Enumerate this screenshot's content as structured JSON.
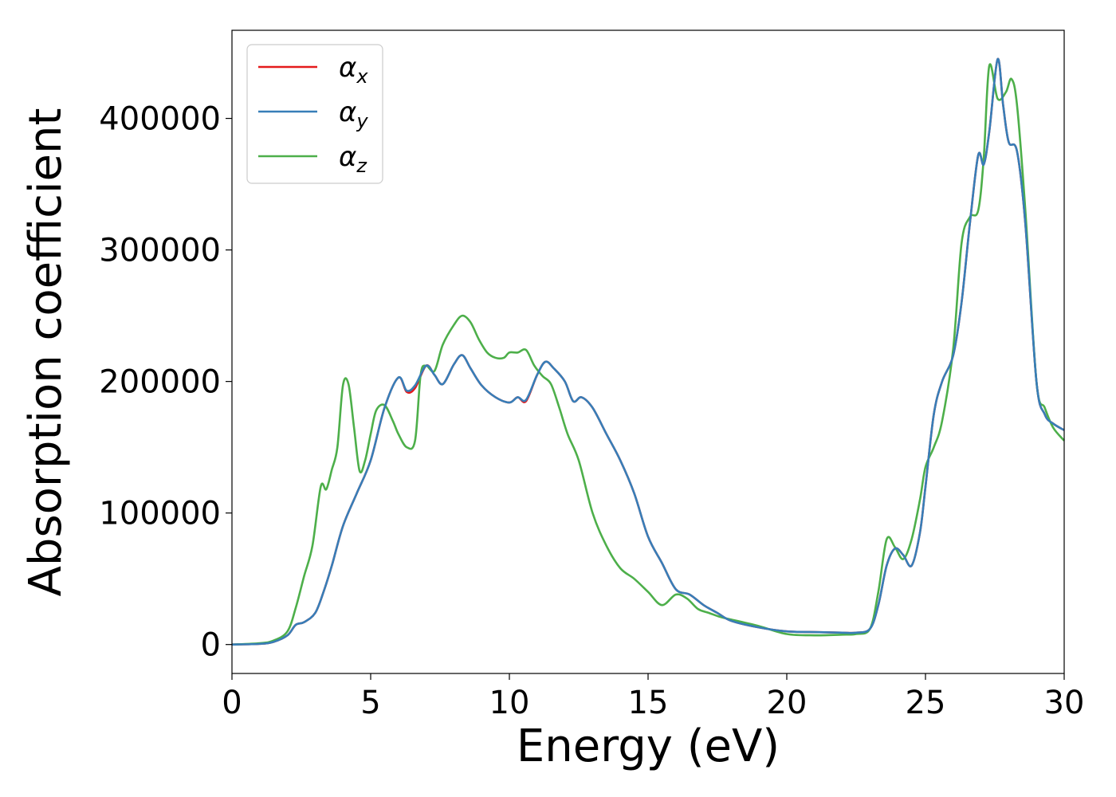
{
  "chart_data": {
    "type": "line",
    "title": "",
    "xlabel": "Energy (eV)",
    "ylabel": "Absorption coefficient",
    "xlim": [
      0,
      30
    ],
    "ylim": [
      -22000,
      467000
    ],
    "xticks": [
      0,
      5,
      10,
      15,
      20,
      25,
      30
    ],
    "xtick_labels": [
      "0",
      "5",
      "10",
      "15",
      "20",
      "25",
      "30"
    ],
    "yticks": [
      0,
      100000,
      200000,
      300000,
      400000
    ],
    "ytick_labels": [
      "0",
      "100000",
      "200000",
      "300000",
      "400000"
    ],
    "grid": false,
    "legend_position": "top-left",
    "colors": {
      "alpha_x": "#e41a1c",
      "alpha_y": "#377eb8",
      "alpha_z": "#4daf4a"
    },
    "series": [
      {
        "key": "alpha_x",
        "name": "α",
        "subscript": "x",
        "color": "#e41a1c",
        "x": [
          0,
          1,
          1.5,
          2,
          2.3,
          2.6,
          3,
          3.3,
          3.6,
          4,
          4.5,
          5,
          5.5,
          6,
          6.3,
          6.6,
          7,
          7.3,
          7.6,
          8,
          8.3,
          8.6,
          9,
          9.5,
          10,
          10.3,
          10.6,
          11,
          11.3,
          11.6,
          12,
          12.3,
          12.6,
          13,
          13.5,
          14,
          14.5,
          15,
          15.5,
          16,
          16.5,
          17,
          17.5,
          18,
          19,
          20,
          21,
          22,
          22.5,
          23,
          23.3,
          23.6,
          23.9,
          24.2,
          24.5,
          24.8,
          25,
          25.3,
          25.6,
          26,
          26.3,
          26.6,
          26.9,
          27.1,
          27.3,
          27.6,
          27.8,
          28,
          28.3,
          28.6,
          29,
          29.3,
          29.6,
          30
        ],
        "y": [
          0,
          500,
          2000,
          7000,
          15000,
          17000,
          24000,
          40000,
          60000,
          90000,
          115000,
          140000,
          180000,
          203000,
          192000,
          195000,
          212000,
          205000,
          198000,
          213000,
          220000,
          210000,
          197000,
          188000,
          184000,
          188000,
          185000,
          205000,
          215000,
          210000,
          200000,
          185000,
          188000,
          180000,
          160000,
          140000,
          115000,
          82000,
          62000,
          42000,
          38000,
          30000,
          24000,
          18000,
          13000,
          10000,
          9500,
          9000,
          9000,
          12000,
          30000,
          60000,
          73000,
          68000,
          60000,
          85000,
          120000,
          175000,
          200000,
          220000,
          260000,
          320000,
          372000,
          365000,
          390000,
          445000,
          410000,
          382000,
          375000,
          320000,
          200000,
          175000,
          168000,
          163000
        ]
      },
      {
        "key": "alpha_y",
        "name": "α",
        "subscript": "y",
        "color": "#377eb8",
        "x": [
          0,
          1,
          1.5,
          2,
          2.3,
          2.6,
          3,
          3.3,
          3.6,
          4,
          4.5,
          5,
          5.5,
          6,
          6.3,
          6.6,
          7,
          7.3,
          7.6,
          8,
          8.3,
          8.6,
          9,
          9.5,
          10,
          10.3,
          10.6,
          11,
          11.3,
          11.6,
          12,
          12.3,
          12.6,
          13,
          13.5,
          14,
          14.5,
          15,
          15.5,
          16,
          16.5,
          17,
          17.5,
          18,
          19,
          20,
          21,
          22,
          22.5,
          23,
          23.3,
          23.6,
          23.9,
          24.2,
          24.5,
          24.8,
          25,
          25.3,
          25.6,
          26,
          26.3,
          26.6,
          26.9,
          27.1,
          27.3,
          27.6,
          27.8,
          28,
          28.3,
          28.6,
          29,
          29.3,
          29.6,
          30
        ],
        "y": [
          0,
          500,
          2000,
          7000,
          15000,
          17000,
          24000,
          40000,
          60000,
          90000,
          115000,
          140000,
          180000,
          203000,
          193000,
          197000,
          212000,
          205000,
          198000,
          213000,
          220000,
          210000,
          197000,
          188000,
          184000,
          188000,
          186000,
          205000,
          215000,
          210000,
          200000,
          185000,
          188000,
          180000,
          160000,
          140000,
          115000,
          82000,
          62000,
          42000,
          38000,
          30000,
          24000,
          18000,
          13000,
          10000,
          9500,
          9000,
          9000,
          12000,
          30000,
          60000,
          73000,
          68000,
          60000,
          85000,
          120000,
          175000,
          200000,
          220000,
          260000,
          320000,
          372000,
          365000,
          390000,
          445000,
          410000,
          382000,
          375000,
          320000,
          200000,
          175000,
          168000,
          163000
        ]
      },
      {
        "key": "alpha_z",
        "name": "α",
        "subscript": "z",
        "color": "#4daf4a",
        "x": [
          0,
          1,
          1.5,
          2,
          2.3,
          2.6,
          2.9,
          3.2,
          3.4,
          3.6,
          3.8,
          4,
          4.2,
          4.4,
          4.6,
          4.8,
          5,
          5.2,
          5.5,
          5.8,
          6,
          6.3,
          6.6,
          6.8,
          7,
          7.3,
          7.6,
          8,
          8.3,
          8.6,
          8.9,
          9.2,
          9.5,
          9.8,
          10,
          10.3,
          10.6,
          10.9,
          11.2,
          11.5,
          11.8,
          12.1,
          12.5,
          13,
          13.5,
          14,
          14.5,
          15,
          15.5,
          16,
          16.4,
          16.8,
          17.2,
          17.6,
          18,
          19,
          20,
          21,
          22,
          22.5,
          23,
          23.3,
          23.6,
          23.9,
          24.2,
          24.5,
          24.8,
          25,
          25.3,
          25.6,
          26,
          26.3,
          26.6,
          26.9,
          27.1,
          27.3,
          27.6,
          27.9,
          28.1,
          28.3,
          28.6,
          29,
          29.3,
          29.6,
          30
        ],
        "y": [
          0,
          1000,
          3000,
          10000,
          28000,
          52000,
          75000,
          120000,
          118000,
          133000,
          150000,
          197000,
          198000,
          165000,
          132000,
          140000,
          160000,
          178000,
          182000,
          170000,
          160000,
          150000,
          155000,
          205000,
          212000,
          208000,
          228000,
          243000,
          250000,
          245000,
          232000,
          222000,
          218000,
          218000,
          222000,
          222000,
          224000,
          212000,
          204000,
          198000,
          180000,
          160000,
          140000,
          100000,
          75000,
          58000,
          50000,
          40000,
          30000,
          38000,
          35000,
          27000,
          24000,
          21000,
          19000,
          14000,
          8000,
          7000,
          7500,
          8000,
          12000,
          40000,
          80000,
          74000,
          65000,
          80000,
          110000,
          135000,
          150000,
          170000,
          225000,
          305000,
          325000,
          330000,
          370000,
          440000,
          415000,
          420000,
          430000,
          410000,
          330000,
          200000,
          180000,
          165000,
          155000
        ]
      }
    ]
  }
}
